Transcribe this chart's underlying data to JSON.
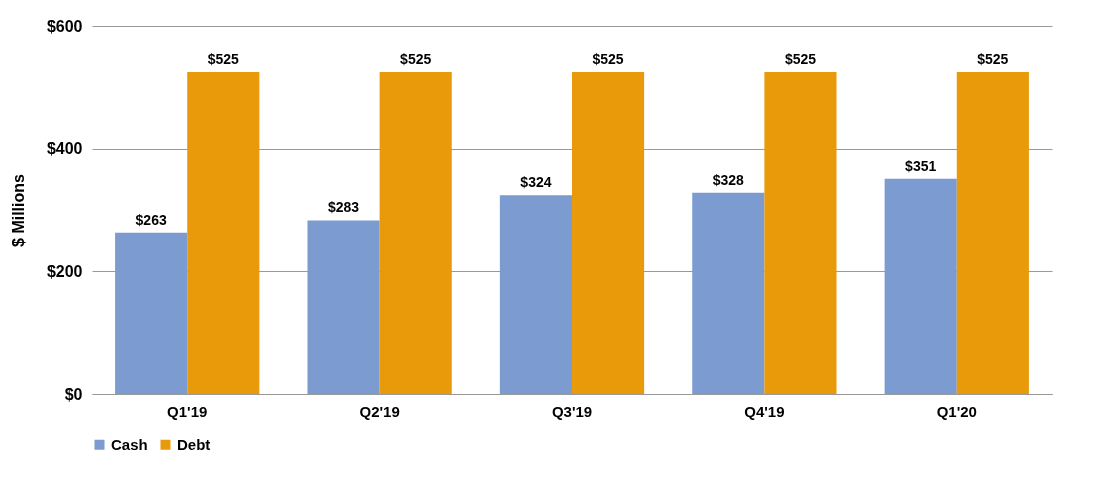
{
  "chart_data": {
    "type": "bar",
    "ylabel": "$ Millions",
    "categories": [
      "Q1'19",
      "Q2'19",
      "Q3'19",
      "Q4'19",
      "Q1'20"
    ],
    "series": [
      {
        "name": "Cash",
        "color": "#7b9bd1",
        "values": [
          263,
          283,
          324,
          328,
          351
        ],
        "value_labels": [
          "$263",
          "$283",
          "$324",
          "$328",
          "$351"
        ]
      },
      {
        "name": "Debt",
        "color": "#e89a0a",
        "values": [
          525,
          525,
          525,
          525,
          525
        ],
        "value_labels": [
          "$525",
          "$525",
          "$525",
          "$525",
          "$525"
        ]
      }
    ],
    "ylim": [
      0,
      600
    ],
    "yticks": [
      {
        "value": 0,
        "label": "$0"
      },
      {
        "value": 200,
        "label": "$200"
      },
      {
        "value": 400,
        "label": "$400"
      },
      {
        "value": 600,
        "label": "$600"
      }
    ],
    "grid": "y",
    "legend": "bottom"
  }
}
